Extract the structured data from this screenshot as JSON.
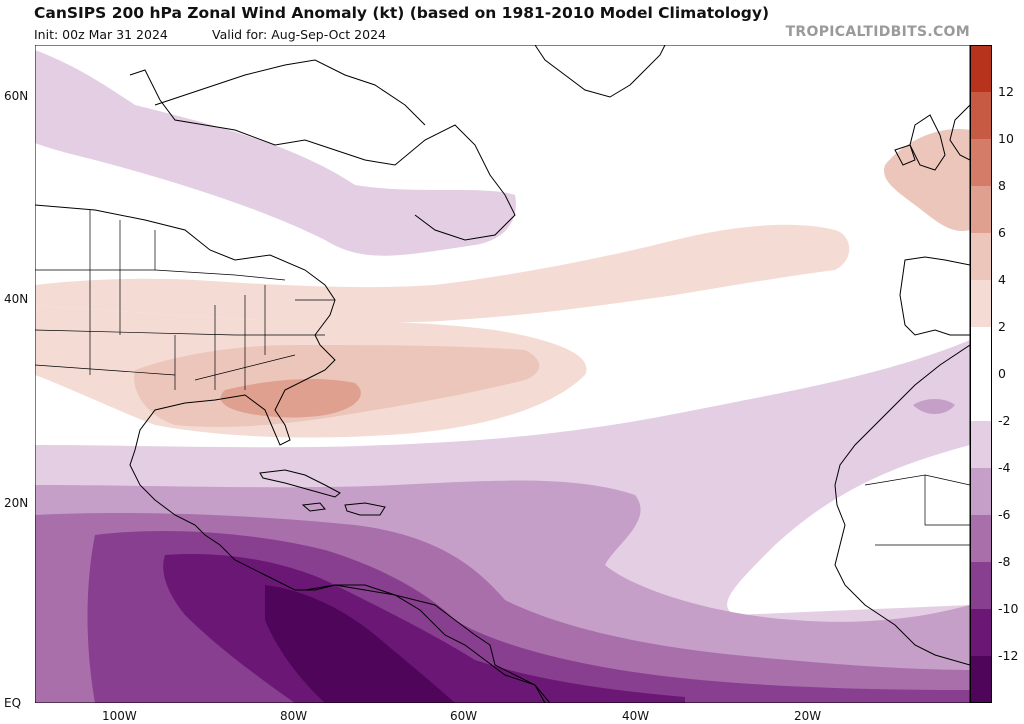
{
  "header": {
    "title": "CanSIPS 200 hPa Zonal Wind Anomaly (kt) (based on 1981-2010 Model Climatology)",
    "init": "Init: 00z Mar 31 2024",
    "valid": "Valid for: Aug-Sep-Oct 2024",
    "brand": "TROPICALTIDBITS.COM"
  },
  "axes": {
    "lat_labels": [
      "60N",
      "40N",
      "20N",
      "EQ"
    ],
    "lon_labels": [
      "100W",
      "80W",
      "60W",
      "40W",
      "20W"
    ]
  },
  "colorbar": {
    "labels": [
      "12",
      "10",
      "8",
      "6",
      "4",
      "2",
      "0",
      "-2",
      "-4",
      "-6",
      "-8",
      "-10",
      "-12"
    ],
    "colors": [
      "#b8331c",
      "#c65a42",
      "#d47c67",
      "#dfa090",
      "#ecc6bb",
      "#f4dcd4",
      "#ffffff",
      "#ffffff",
      "#e3cee3",
      "#c59fc7",
      "#a86fab",
      "#893f8f",
      "#6b1776",
      "#4f0559"
    ]
  },
  "colors": {
    "land_outline": "#000000",
    "anomaly_neg_light": "#e3cee3",
    "anomaly_neg_mid": "#c59fc7",
    "anomaly_neg_strong": "#893f8f",
    "anomaly_pos_light": "#f4dcd4",
    "anomaly_pos_mid": "#dfa090"
  }
}
